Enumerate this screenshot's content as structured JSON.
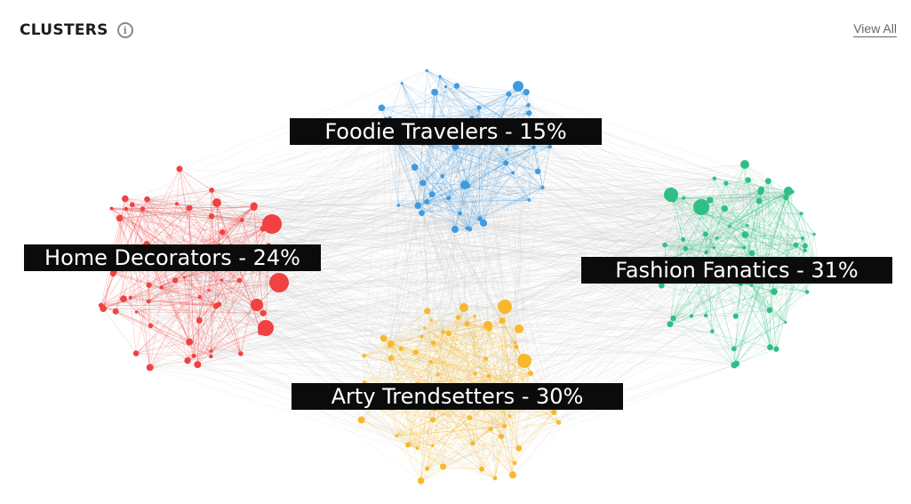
{
  "header": {
    "title": "CLUSTERS",
    "info_icon": "info-icon",
    "view_all": "View All"
  },
  "clusters": [
    {
      "id": "foodie",
      "label": "Foodie Travelers - 15%",
      "name": "Foodie Travelers",
      "percent": 15,
      "color": "#3f9be0"
    },
    {
      "id": "home",
      "label": "Home Decorators - 24%",
      "name": "Home Decorators",
      "percent": 24,
      "color": "#f04242"
    },
    {
      "id": "fashion",
      "label": "Fashion Fanatics - 31%",
      "name": "Fashion Fanatics",
      "percent": 31,
      "color": "#2fbf85"
    },
    {
      "id": "arty",
      "label": "Arty Trendsetters - 30%",
      "name": "Arty Trendsetters",
      "percent": 30,
      "color": "#f7b92b"
    }
  ],
  "link_color": "#cfcfcf"
}
